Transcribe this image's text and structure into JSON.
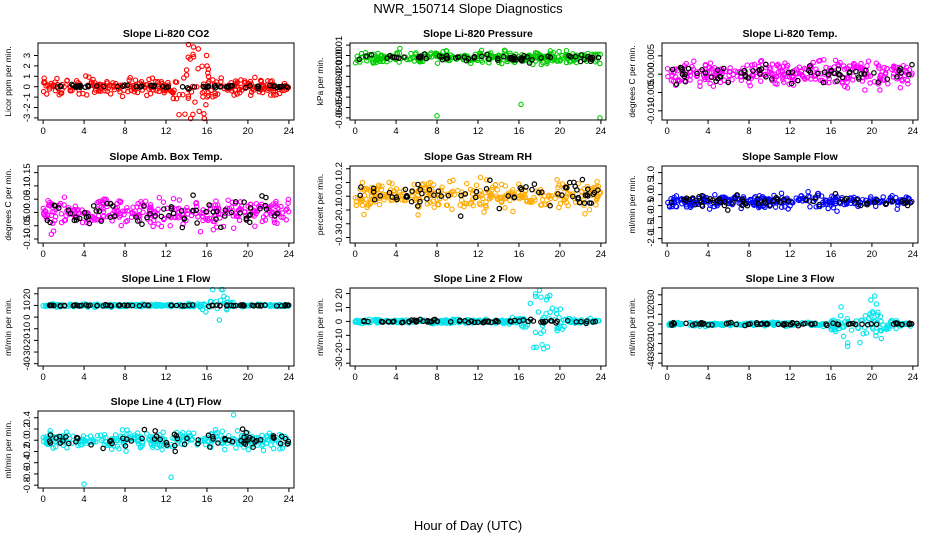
{
  "title": "NWR_150714  Slope Diagnostics",
  "xlabel": "Hour of Day (UTC)",
  "chart_data": [
    {
      "type": "scatter",
      "title": "Slope Li-820 CO2",
      "ylabel": "Licor ppm per min.",
      "xlim": [
        -0.5,
        24.5
      ],
      "ylim": [
        -3.2,
        4.2
      ],
      "xticks": [
        0,
        4,
        8,
        12,
        16,
        20,
        24
      ],
      "yticks": [
        -3,
        -2,
        -1,
        0,
        1,
        2,
        3
      ],
      "yticklabels": [
        "-3",
        "-2",
        "-1",
        "0",
        "1",
        "2",
        "3"
      ],
      "color": "#ff0000",
      "noise": 0.7,
      "spike": {
        "center": 14.7,
        "width": 1.6,
        "amp": 2.6
      },
      "blackNoise": 0.12
    },
    {
      "type": "scatter",
      "title": "Slope Li-820 Pressure",
      "ylabel": "kPa per min.",
      "xlim": [
        -0.5,
        24.5
      ],
      "ylim": [
        -0.062,
        0.012
      ],
      "xticks": [
        0,
        4,
        8,
        12,
        16,
        20,
        24
      ],
      "yticks": [
        0.01,
        0,
        -0.01,
        -0.02,
        -0.03,
        -0.04,
        -0.05,
        -0.06
      ],
      "yticklabels": [
        "0.01",
        "0.00",
        "-0.01",
        "-0.02",
        "-0.03",
        "-0.04",
        "-0.05",
        "-0.06"
      ],
      "color": "#00cc00",
      "noise": 0.005,
      "center": -0.002,
      "outliers": [
        [
          8,
          -0.058
        ],
        [
          16.2,
          -0.047
        ],
        [
          23.9,
          -0.06
        ]
      ],
      "blackNoise": 0.003
    },
    {
      "type": "scatter",
      "title": "Slope Li-820 Temp.",
      "ylabel": "degrees C per min.",
      "xlim": [
        -0.5,
        24.5
      ],
      "ylim": [
        -0.0125,
        0.0085
      ],
      "xticks": [
        0,
        4,
        8,
        12,
        16,
        20,
        24
      ],
      "yticks": [
        0.005,
        0,
        -0.005,
        -0.01
      ],
      "yticklabels": [
        "0.005",
        "0.000",
        "-0.005",
        "-0.010"
      ],
      "color": "#ff00ff",
      "noise": 0.003,
      "blackNoise": 0.002
    },
    {
      "type": "scatter",
      "title": "Slope Amb. Box Temp.",
      "ylabel": "degrees C per min.",
      "xlim": [
        -0.5,
        24.5
      ],
      "ylim": [
        -0.115,
        0.175
      ],
      "xticks": [
        0,
        4,
        8,
        12,
        16,
        20,
        24
      ],
      "yticks": [
        0.15,
        0.1,
        0.05,
        0,
        -0.05,
        -0.1
      ],
      "yticklabels": [
        "0.15",
        "0.10",
        "0.05",
        "0.00",
        "-0.05",
        "-0.10"
      ],
      "color": "#ff00ff",
      "noise": 0.045,
      "blackNoise": 0.04
    },
    {
      "type": "scatter",
      "title": "Slope Gas Stream RH",
      "ylabel": "percent per min.",
      "xlim": [
        -0.5,
        24.5
      ],
      "ylim": [
        -0.34,
        0.22
      ],
      "xticks": [
        0,
        4,
        8,
        12,
        16,
        20,
        24
      ],
      "yticks": [
        0.2,
        0.1,
        0,
        -0.1,
        -0.2,
        -0.3
      ],
      "yticklabels": [
        "0.2",
        "0.1",
        "0.0",
        "-0.1",
        "-0.2",
        "-0.3"
      ],
      "color": "#ffaa00",
      "noise": 0.1,
      "blackNoise": 0.08
    },
    {
      "type": "scatter",
      "title": "Slope Sample Flow",
      "ylabel": "ml/min per min.",
      "xlim": [
        -0.5,
        24.5
      ],
      "ylim": [
        -2.2,
        1.3
      ],
      "xticks": [
        0,
        4,
        8,
        12,
        16,
        20,
        24
      ],
      "yticks": [
        1,
        0.5,
        0,
        -0.5,
        -1,
        -1.5,
        -2
      ],
      "yticklabels": [
        "1.0",
        "0.5",
        "0.0",
        "-0.5",
        "-1.0",
        "-1.5",
        "-2.0"
      ],
      "color": "#0000ff",
      "noise": 0.25,
      "center": -0.3,
      "blackNoise": 0.2
    },
    {
      "type": "scatter",
      "title": "Slope Line 1 Flow",
      "ylabel": "ml/min per min.",
      "xlim": [
        -0.5,
        24.5
      ],
      "ylim": [
        -42,
        25
      ],
      "xticks": [
        0,
        4,
        8,
        12,
        16,
        20,
        24
      ],
      "yticks": [
        20,
        10,
        0,
        -10,
        -20,
        -30,
        -40
      ],
      "yticklabels": [
        "20",
        "10",
        "0",
        "-10",
        "-20",
        "-30",
        "-40"
      ],
      "color": "#00e5ee",
      "noise": 1.0,
      "center": 10,
      "spike": {
        "center": 17,
        "width": 0.9,
        "amp": 22
      },
      "blackNoise": 0.5
    },
    {
      "type": "scatter",
      "title": "Slope Line 2 Flow",
      "ylabel": "ml/min per min.",
      "xlim": [
        -0.5,
        24.5
      ],
      "ylim": [
        -32,
        24
      ],
      "xticks": [
        0,
        4,
        8,
        12,
        16,
        20,
        24
      ],
      "yticks": [
        20,
        10,
        0,
        -10,
        -20,
        -30
      ],
      "yticklabels": [
        "20",
        "10",
        "0",
        "-10",
        "-20",
        "-30"
      ],
      "color": "#00e5ee",
      "noise": 1.2,
      "spike": {
        "center": 18.5,
        "width": 1.6,
        "amp": 14
      },
      "blackNoise": 1.0
    },
    {
      "type": "scatter",
      "title": "Slope Line 3 Flow",
      "ylabel": "ml/min per min.",
      "xlim": [
        -0.5,
        24.5
      ],
      "ylim": [
        -43,
        37
      ],
      "xticks": [
        0,
        4,
        8,
        12,
        16,
        20,
        24
      ],
      "yticks": [
        30,
        20,
        10,
        0,
        -10,
        -20,
        -30,
        -40
      ],
      "yticklabels": [
        "30",
        "20",
        "10",
        "0",
        "-10",
        "-20",
        "-30",
        "-40"
      ],
      "color": "#00e5ee",
      "noise": 1.5,
      "spike": {
        "center": 19,
        "width": 2.2,
        "amp": 16
      },
      "blackNoise": 1.2
    },
    {
      "type": "scatter",
      "title": "Slope Line 4 (LT) Flow",
      "ylabel": "ml/min per min.",
      "xlim": [
        -0.5,
        24.5
      ],
      "ylim": [
        -0.85,
        0.52
      ],
      "xticks": [
        0,
        4,
        8,
        12,
        16,
        20,
        24
      ],
      "yticks": [
        0.4,
        0.2,
        0,
        -0.2,
        -0.4,
        -0.6,
        -0.8
      ],
      "yticklabels": [
        "0.4",
        "0.2",
        "0.0",
        "-0.2",
        "-0.4",
        "-0.6",
        "-0.8"
      ],
      "color": "#00e5ee",
      "noise": 0.13,
      "outliers": [
        [
          4,
          -0.78
        ],
        [
          12.5,
          -0.66
        ],
        [
          18.6,
          0.45
        ]
      ],
      "blackNoise": 0.12
    }
  ]
}
